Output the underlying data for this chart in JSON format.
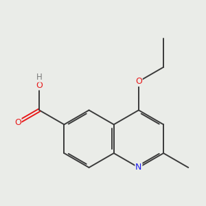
{
  "background_color": "#eaece8",
  "bond_color": "#3a3a3a",
  "bond_width": 1.4,
  "atom_colors": {
    "O": "#e8191a",
    "N": "#1a1aed",
    "H": "#7a7a7a"
  },
  "figsize": [
    3.0,
    3.0
  ],
  "dpi": 100,
  "bl": 1.0
}
